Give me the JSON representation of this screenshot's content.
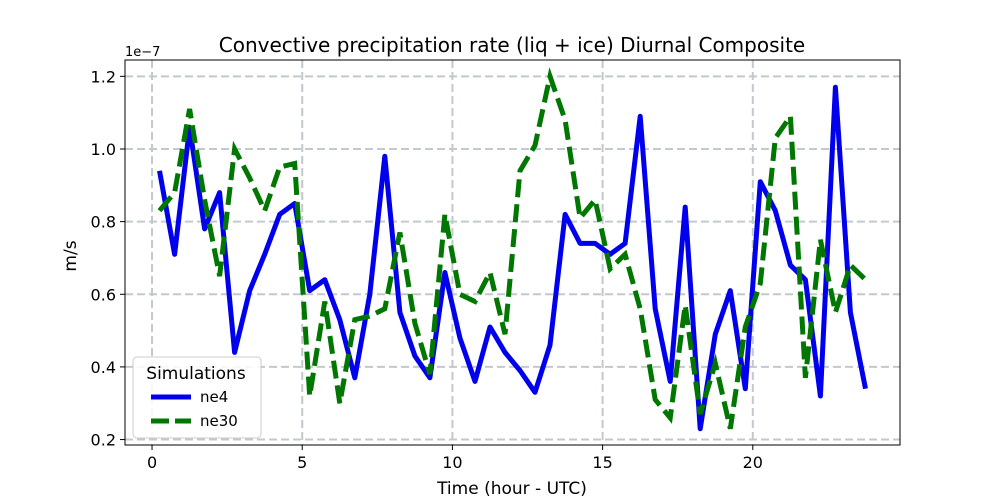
{
  "chart_data": {
    "type": "line",
    "title": "Convective precipitation rate (liq + ice) Diurnal Composite",
    "xlabel": "Time (hour - UTC)",
    "ylabel": "m/s",
    "y_offset_label": "1e−7",
    "xlim": [
      -0.9,
      24.9
    ],
    "ylim": [
      0.185,
      1.245
    ],
    "x_ticks": [
      0,
      5,
      10,
      15,
      20
    ],
    "x_tick_labels": [
      "0",
      "5",
      "10",
      "15",
      "20"
    ],
    "y_ticks": [
      0.2,
      0.4,
      0.6,
      0.8,
      1.0,
      1.2
    ],
    "y_tick_labels": [
      "0.2",
      "0.4",
      "0.6",
      "0.8",
      "1.0",
      "1.2"
    ],
    "grid": true,
    "legend": {
      "title": "Simulations",
      "position": "lower-left"
    },
    "x": [
      0.25,
      0.75,
      1.25,
      1.75,
      2.25,
      2.75,
      3.25,
      3.75,
      4.25,
      4.75,
      5.25,
      5.75,
      6.25,
      6.75,
      7.25,
      7.75,
      8.25,
      8.75,
      9.25,
      9.75,
      10.25,
      10.75,
      11.25,
      11.75,
      12.25,
      12.75,
      13.25,
      13.75,
      14.25,
      14.75,
      15.25,
      15.75,
      16.25,
      16.75,
      17.25,
      17.75,
      18.25,
      18.75,
      19.25,
      19.75,
      20.25,
      20.75,
      21.25,
      21.75,
      22.25,
      22.75,
      23.25,
      23.75
    ],
    "series": [
      {
        "name": "ne4",
        "color": "#0000ee",
        "style": "solid",
        "values": [
          0.94,
          0.71,
          1.06,
          0.78,
          0.88,
          0.44,
          0.61,
          0.71,
          0.82,
          0.85,
          0.61,
          0.64,
          0.53,
          0.37,
          0.6,
          0.98,
          0.55,
          0.43,
          0.37,
          0.66,
          0.48,
          0.36,
          0.51,
          0.44,
          0.39,
          0.33,
          0.46,
          0.82,
          0.74,
          0.74,
          0.71,
          0.74,
          1.09,
          0.56,
          0.36,
          0.84,
          0.23,
          0.49,
          0.61,
          0.34,
          0.91,
          0.83,
          0.68,
          0.64,
          0.32,
          1.17,
          0.55,
          0.34
        ]
      },
      {
        "name": "ne30",
        "color": "#007700",
        "style": "dashed",
        "values": [
          0.83,
          0.88,
          1.11,
          0.86,
          0.65,
          1.0,
          0.92,
          0.83,
          0.95,
          0.96,
          0.32,
          0.58,
          0.3,
          0.53,
          0.54,
          0.56,
          0.77,
          0.52,
          0.38,
          0.82,
          0.6,
          0.58,
          0.66,
          0.49,
          0.94,
          1.01,
          1.2,
          1.08,
          0.81,
          0.86,
          0.67,
          0.71,
          0.56,
          0.31,
          0.26,
          0.57,
          0.27,
          0.41,
          0.23,
          0.51,
          0.63,
          1.03,
          1.09,
          0.37,
          0.75,
          0.55,
          0.68,
          0.64
        ]
      }
    ]
  }
}
